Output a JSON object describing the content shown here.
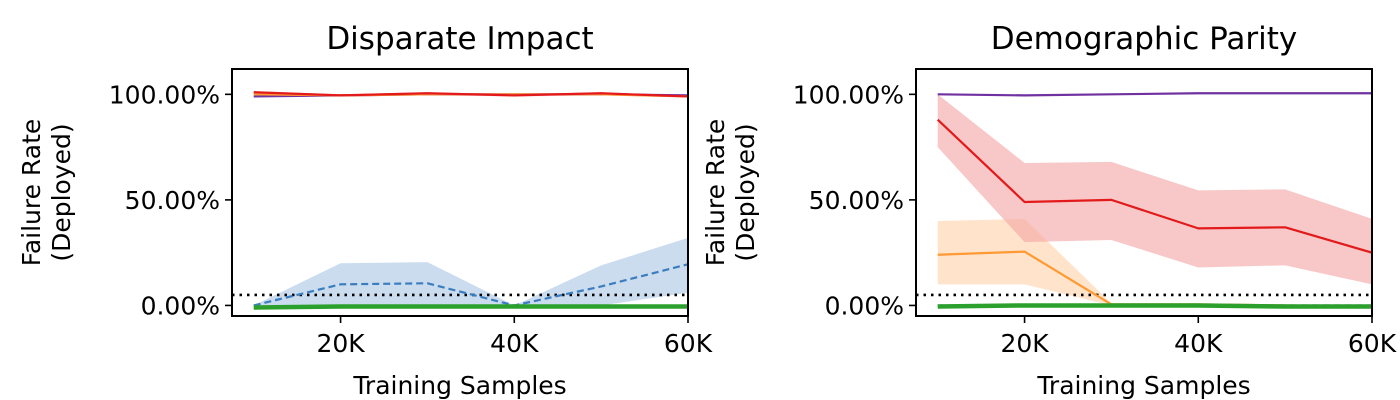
{
  "chart_data": [
    {
      "type": "line",
      "title": "Disparate Impact",
      "xlabel": "Training Samples",
      "ylabel": [
        "Failure Rate",
        "(Deployed)"
      ],
      "xlim": [
        7500,
        60000
      ],
      "ylim": [
        -0.05,
        1.12
      ],
      "xticks": [
        20000,
        40000,
        60000
      ],
      "xtick_labels": [
        "20K",
        "40K",
        "60K"
      ],
      "yticks": [
        0,
        0.5,
        1.0
      ],
      "ytick_labels": [
        "0.00%",
        "50.00%",
        "100.00%"
      ],
      "threshold": 0.05,
      "grid": false,
      "x": [
        10000,
        20000,
        30000,
        40000,
        50000,
        60000
      ],
      "series": [
        {
          "color": "#7030a0",
          "style": "solid",
          "width": 2.2,
          "values": [
            0.99,
            0.995,
            1.0,
            1.0,
            1.0,
            0.995
          ]
        },
        {
          "color": "#ff9933",
          "style": "solid",
          "width": 2.2,
          "values": [
            1.0,
            0.995,
            1.0,
            1.0,
            1.0,
            0.99
          ]
        },
        {
          "color": "#e31a1c",
          "style": "solid",
          "width": 2.2,
          "values": [
            1.01,
            0.995,
            1.005,
            0.995,
            1.005,
            0.99
          ],
          "band_color": "#f4a3a3",
          "lower": [
            1.0,
            0.99,
            0.995,
            0.99,
            0.995,
            0.985
          ],
          "upper": [
            1.015,
            1.0,
            1.01,
            1.0,
            1.01,
            0.995
          ]
        },
        {
          "color": "#3a7dc0",
          "style": "dashed",
          "width": 2.2,
          "values": [
            0.0,
            0.1,
            0.105,
            0.0,
            0.09,
            0.195
          ],
          "band_color": "#a6c4e3",
          "lower": [
            0.0,
            0.0,
            0.0,
            0.0,
            0.0,
            0.06
          ],
          "upper": [
            0.0,
            0.2,
            0.205,
            0.0,
            0.19,
            0.32
          ]
        },
        {
          "color": "#2ca02c",
          "style": "solid",
          "width": 4.5,
          "values": [
            -0.01,
            -0.005,
            -0.005,
            -0.005,
            -0.005,
            -0.005
          ]
        }
      ]
    },
    {
      "type": "line",
      "title": "Demographic Parity",
      "xlabel": "Training Samples",
      "ylabel": [
        "Failure Rate",
        "(Deployed)"
      ],
      "xlim": [
        7500,
        60000
      ],
      "ylim": [
        -0.05,
        1.12
      ],
      "xticks": [
        20000,
        40000,
        60000
      ],
      "xtick_labels": [
        "20K",
        "40K",
        "60K"
      ],
      "yticks": [
        0,
        0.5,
        1.0
      ],
      "ytick_labels": [
        "0.00%",
        "50.00%",
        "100.00%"
      ],
      "threshold": 0.05,
      "grid": false,
      "x": [
        10000,
        20000,
        30000,
        40000,
        50000,
        60000
      ],
      "series": [
        {
          "color": "#7030a0",
          "style": "solid",
          "width": 2.2,
          "values": [
            1.0,
            0.995,
            1.0,
            1.005,
            1.005,
            1.005
          ]
        },
        {
          "color": "#ff9933",
          "style": "solid",
          "width": 2.2,
          "values": [
            0.24,
            0.255,
            0.005,
            0.005,
            0.0,
            -0.005
          ],
          "band_color": "#ffd2a8",
          "lower": [
            0.1,
            0.1,
            0.0,
            0.0,
            -0.005,
            -0.01
          ],
          "upper": [
            0.4,
            0.41,
            0.01,
            0.01,
            0.005,
            0.0
          ]
        },
        {
          "color": "#e31a1c",
          "style": "solid",
          "width": 2.2,
          "values": [
            0.88,
            0.49,
            0.5,
            0.365,
            0.37,
            0.25
          ],
          "band_color": "#f4a3a3",
          "lower": [
            0.75,
            0.3,
            0.31,
            0.18,
            0.19,
            0.1
          ],
          "upper": [
            1.0,
            0.675,
            0.68,
            0.545,
            0.55,
            0.41
          ]
        },
        {
          "color": "#3a7dc0",
          "style": "dashed",
          "width": 2.2,
          "values": [
            0.0,
            0.0,
            0.0,
            0.0,
            0.0,
            0.0
          ]
        },
        {
          "color": "#2ca02c",
          "style": "solid",
          "width": 4.5,
          "values": [
            -0.005,
            0.0,
            0.0,
            0.0,
            -0.005,
            -0.005
          ]
        }
      ]
    }
  ]
}
